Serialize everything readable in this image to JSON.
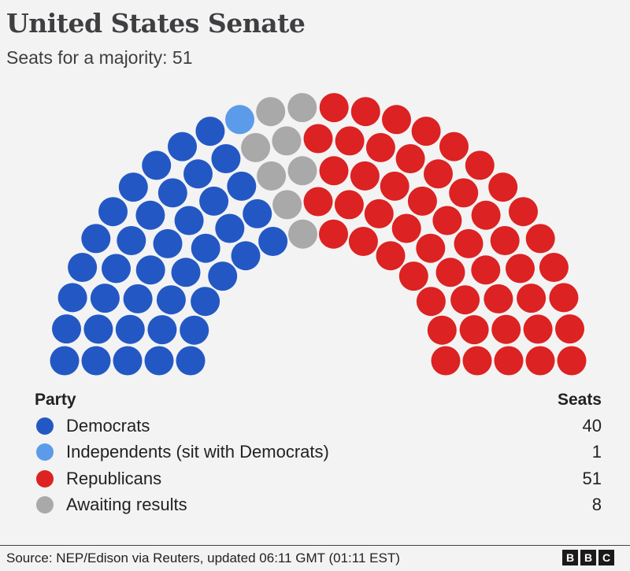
{
  "title": "United States Senate",
  "subtitle": "Seats for a majority: 51",
  "legend": {
    "party_header": "Party",
    "seats_header": "Seats"
  },
  "chart_data": {
    "type": "parliament",
    "title": "United States Senate",
    "subtitle": "Seats for a majority: 51",
    "total_seats": 100,
    "majority": 51,
    "parties": [
      {
        "name": "Democrats",
        "seats": 40,
        "color": "#2358c4"
      },
      {
        "name": "Independents (sit with Democrats)",
        "seats": 1,
        "color": "#5c9be9"
      },
      {
        "name": "Awaiting results",
        "seats": 8,
        "color": "#a9a9a9"
      },
      {
        "name": "Republicans",
        "seats": 51,
        "color": "#dc2222"
      }
    ]
  },
  "footer": {
    "source": "Source: NEP/Edison via Reuters, updated 06:11 GMT (01:11 EST)",
    "logo": [
      "B",
      "B",
      "C"
    ]
  }
}
